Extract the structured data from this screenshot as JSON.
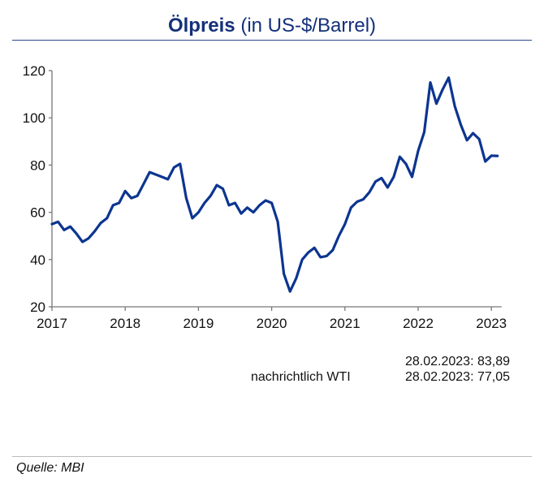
{
  "chart_data": {
    "type": "line",
    "title_bold": "Ölpreis",
    "title_rest": "(in US-$/Barrel)",
    "xlabel": "",
    "ylabel": "",
    "ylim": [
      20,
      120
    ],
    "yticks": [
      20,
      40,
      60,
      80,
      100,
      120
    ],
    "xticks": [
      "2017",
      "2018",
      "2019",
      "2020",
      "2021",
      "2022",
      "2023"
    ],
    "xlim": [
      "2017-01",
      "2023-03"
    ],
    "grid": false,
    "line_color": "#0c3590",
    "series": [
      {
        "x_start": "2017-01",
        "frequency": "monthly",
        "values": [
          55,
          56,
          52.5,
          54,
          51,
          47.5,
          49,
          52,
          55.5,
          57.5,
          63,
          64,
          69,
          66,
          67,
          72,
          77,
          76,
          75,
          74,
          79,
          80.5,
          66,
          57.5,
          60,
          64,
          67,
          71.5,
          70,
          63,
          64,
          59.5,
          62,
          60,
          63,
          65,
          64,
          56,
          34,
          26.5,
          32,
          40,
          43,
          45,
          41,
          41.5,
          44,
          50,
          55,
          62,
          64.5,
          65.5,
          68.5,
          73,
          74.5,
          70.5,
          75,
          83.5,
          80.5,
          75,
          86,
          94,
          115,
          106,
          112,
          117,
          105,
          97,
          90.5,
          93.5,
          91,
          81.5,
          84,
          83.89
        ]
      }
    ]
  },
  "notes": {
    "brent_value": "28.02.2023: 83,89",
    "wti_label": "nachrichtlich WTI",
    "wti_value": "28.02.2023: 77,05"
  },
  "source": "Quelle: MBI"
}
